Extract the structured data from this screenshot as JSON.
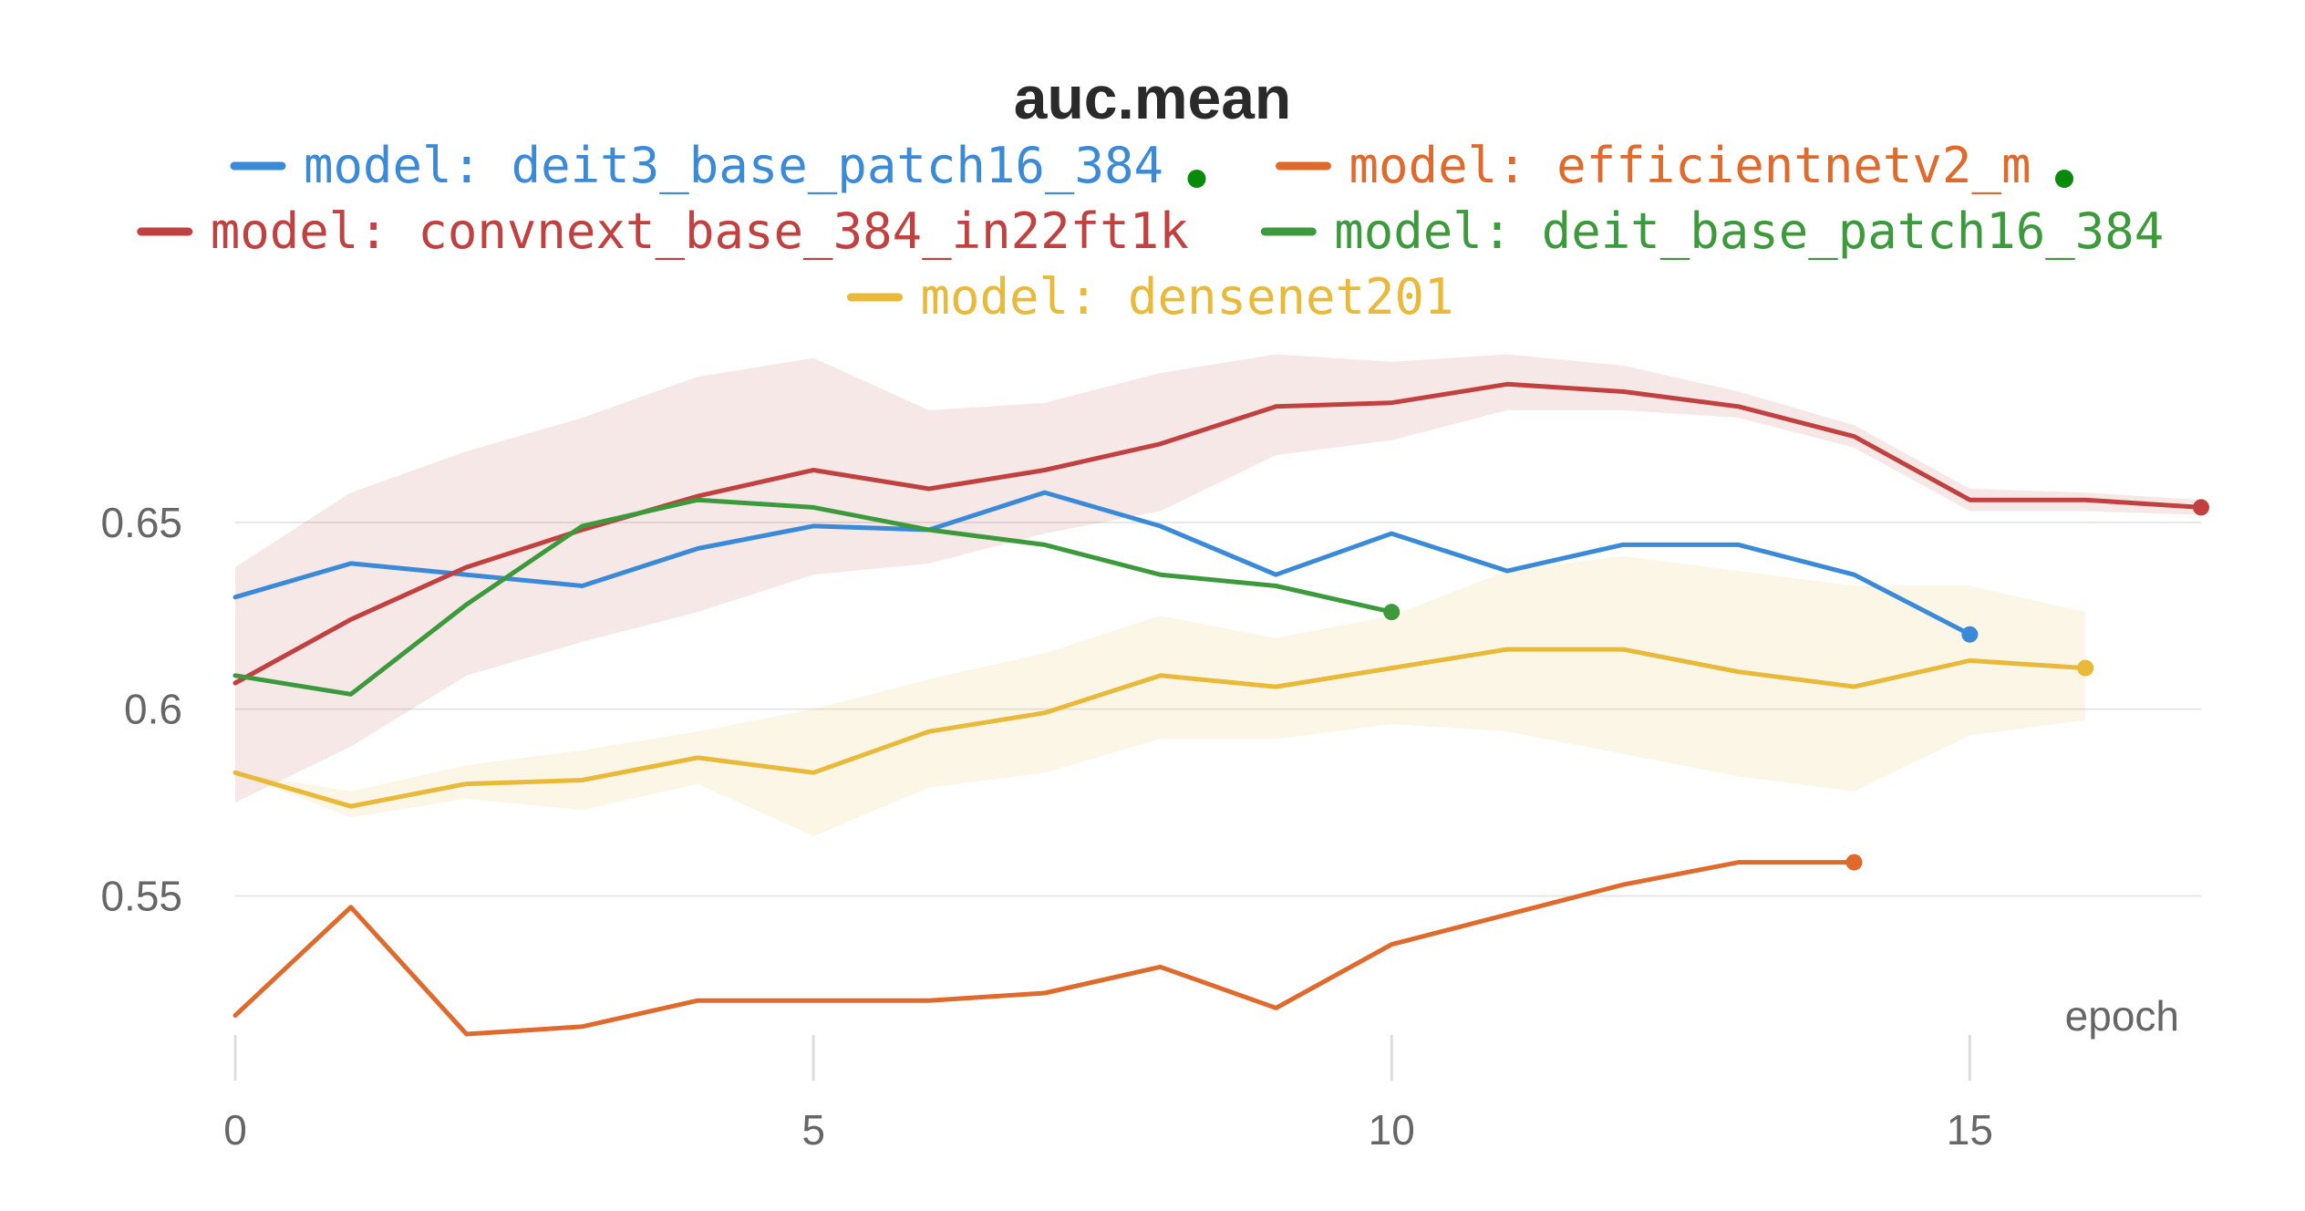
{
  "chart_data": {
    "type": "line",
    "title": "auc.mean",
    "xlabel": "epoch",
    "ylabel": "",
    "xlim": [
      0,
      17
    ],
    "ylim": [
      0.503,
      0.7
    ],
    "x_ticks": [
      0,
      5,
      10,
      15
    ],
    "x_tick_labels": [
      "0",
      "5",
      "10",
      "15"
    ],
    "y_ticks": [
      0.55,
      0.6,
      0.65
    ],
    "y_tick_labels": [
      "0.55",
      "0.6",
      "0.65"
    ],
    "grid": true,
    "legend_position": "top",
    "series": [
      {
        "name": "model: deit3_base_patch16_384",
        "color": "#3b8ad8",
        "marker_dot": true,
        "x": [
          0,
          1,
          2,
          3,
          4,
          5,
          6,
          7,
          8,
          9,
          10,
          11,
          12,
          13,
          14,
          15
        ],
        "y": [
          0.63,
          0.639,
          0.636,
          0.633,
          0.643,
          0.649,
          0.648,
          0.658,
          0.649,
          0.636,
          0.647,
          0.637,
          0.644,
          0.644,
          0.636,
          0.62
        ]
      },
      {
        "name": "model: efficientnetv2_m",
        "color": "#e06a2b",
        "marker_dot": true,
        "x": [
          0,
          1,
          2,
          3,
          4,
          5,
          6,
          7,
          8,
          9,
          10,
          11,
          12,
          13,
          14
        ],
        "y": [
          0.518,
          0.547,
          0.513,
          0.515,
          0.522,
          0.522,
          0.522,
          0.524,
          0.531,
          0.52,
          0.537,
          0.545,
          0.553,
          0.559,
          0.559
        ]
      },
      {
        "name": "model: convnext_base_384_in22ft1k",
        "color": "#c0413f",
        "marker_dot": false,
        "x": [
          0,
          1,
          2,
          3,
          4,
          5,
          6,
          7,
          8,
          9,
          10,
          11,
          12,
          13,
          14,
          15,
          16,
          17
        ],
        "y": [
          0.607,
          0.624,
          0.638,
          0.648,
          0.657,
          0.664,
          0.659,
          0.664,
          0.671,
          0.681,
          0.682,
          0.687,
          0.685,
          0.681,
          0.673,
          0.656,
          0.656,
          0.654
        ],
        "band_upper": [
          0.638,
          0.658,
          0.669,
          0.678,
          0.689,
          0.694,
          0.68,
          0.682,
          0.69,
          0.695,
          0.693,
          0.695,
          0.692,
          0.685,
          0.676,
          0.659,
          0.658,
          0.656
        ],
        "band_lower": [
          0.575,
          0.59,
          0.609,
          0.618,
          0.626,
          0.636,
          0.639,
          0.647,
          0.653,
          0.668,
          0.672,
          0.68,
          0.68,
          0.678,
          0.67,
          0.653,
          0.653,
          0.652
        ]
      },
      {
        "name": "model: deit_base_patch16_384",
        "color": "#3c9a3c",
        "marker_dot": false,
        "x": [
          0,
          1,
          2,
          3,
          4,
          5,
          6,
          7,
          8,
          9,
          10
        ],
        "y": [
          0.609,
          0.604,
          0.628,
          0.649,
          0.656,
          0.654,
          0.648,
          0.644,
          0.636,
          0.633,
          0.626
        ]
      },
      {
        "name": "model: densenet201",
        "color": "#e9b93a",
        "marker_dot": false,
        "x": [
          0,
          1,
          2,
          3,
          4,
          5,
          6,
          7,
          8,
          9,
          10,
          11,
          12,
          13,
          14,
          15,
          16
        ],
        "y": [
          0.583,
          0.574,
          0.58,
          0.581,
          0.587,
          0.583,
          0.594,
          0.599,
          0.609,
          0.606,
          0.611,
          0.616,
          0.616,
          0.61,
          0.606,
          0.613,
          0.611
        ],
        "band_upper": [
          0.583,
          0.578,
          0.585,
          0.589,
          0.594,
          0.6,
          0.608,
          0.615,
          0.625,
          0.619,
          0.625,
          0.637,
          0.641,
          0.637,
          0.633,
          0.633,
          0.626
        ],
        "band_lower": [
          0.583,
          0.571,
          0.576,
          0.573,
          0.58,
          0.566,
          0.579,
          0.583,
          0.592,
          0.592,
          0.596,
          0.594,
          0.588,
          0.582,
          0.578,
          0.593,
          0.597
        ]
      }
    ],
    "legend_marker_color": "#0a8a0a"
  }
}
